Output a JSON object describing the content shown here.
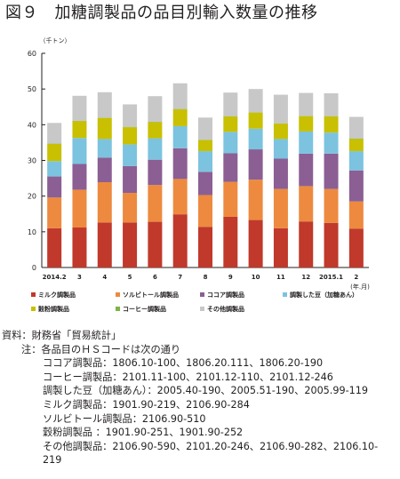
{
  "chart_data": {
    "type": "bar",
    "stacked": true,
    "title": "図９　加糖調製品の品目別輸入数量の推移",
    "unit_label": "（千トン）",
    "xlabel": "(年.月)",
    "ylim": [
      0,
      60
    ],
    "y_ticks": [
      "0",
      "10",
      "20",
      "30",
      "40",
      "50",
      "60"
    ],
    "grid": false,
    "legend_position": "bottom",
    "categories": [
      "2014.2",
      "3",
      "4",
      "5",
      "6",
      "7",
      "8",
      "9",
      "10",
      "11",
      "12",
      "2015.1",
      "2"
    ],
    "series": [
      {
        "name": "ミルク調製品",
        "color": "#c0392b",
        "values": [
          11.0,
          11.2,
          12.6,
          12.6,
          12.8,
          14.9,
          11.4,
          14.2,
          13.3,
          11.0,
          12.9,
          12.5,
          10.9
        ]
      },
      {
        "name": "ソルビトール調製品",
        "color": "#ed8a3f",
        "values": [
          8.6,
          10.6,
          11.3,
          8.3,
          10.3,
          9.9,
          8.9,
          9.8,
          11.3,
          11.0,
          9.9,
          9.5,
          7.6
        ]
      },
      {
        "name": "ココア調製品",
        "color": "#8b5f93",
        "values": [
          5.9,
          7.2,
          6.9,
          7.5,
          7.1,
          8.6,
          6.5,
          8.0,
          8.5,
          8.5,
          9.1,
          9.9,
          8.7
        ]
      },
      {
        "name": "調製した豆（加糖あん）",
        "color": "#7cc3df",
        "values": [
          4.3,
          7.3,
          5.2,
          6.1,
          6.0,
          6.2,
          5.8,
          6.0,
          5.8,
          5.5,
          6.2,
          5.9,
          5.4
        ]
      },
      {
        "name": "穀粉調製品",
        "color": "#c8c000",
        "values": [
          4.8,
          4.7,
          5.9,
          4.8,
          4.5,
          4.7,
          3.1,
          4.3,
          4.5,
          4.3,
          4.3,
          4.5,
          3.4
        ]
      },
      {
        "name": "コーヒー調製品",
        "color": "#7fb347",
        "values": [
          0.1,
          0.1,
          0.1,
          0.1,
          0.1,
          0.1,
          0.1,
          0.1,
          0.1,
          0.1,
          0.1,
          0.1,
          0.1
        ]
      },
      {
        "name": "その他調製品",
        "color": "#c8c8c8",
        "values": [
          5.8,
          7.0,
          7.1,
          6.3,
          7.2,
          7.2,
          6.2,
          6.6,
          6.5,
          8.0,
          6.4,
          6.4,
          6.1
        ]
      }
    ]
  },
  "notes": {
    "source": "資料：財務省「貿易統計」",
    "note_head": "注：各品目のＨＳコードは次の通り",
    "items": [
      "ココア調製品：1806.10-100、1806.20.111、1806.20-190",
      "コーヒー調製品：2101.11-100、2101.12-110、2101.12-246",
      "調製した豆（加糖あん）：2005.40-190、2005.51-190、2005.99-119",
      "ミルク調製品：1901.90-219、2106.90-284",
      "ソルビトール調製品：2106.90-510",
      "穀粉調製品 ：1901.90-251、1901.90-252",
      "その他調製品：2106.90-590、2101.20-246、2106.90-282、2106.10-",
      "219"
    ]
  }
}
